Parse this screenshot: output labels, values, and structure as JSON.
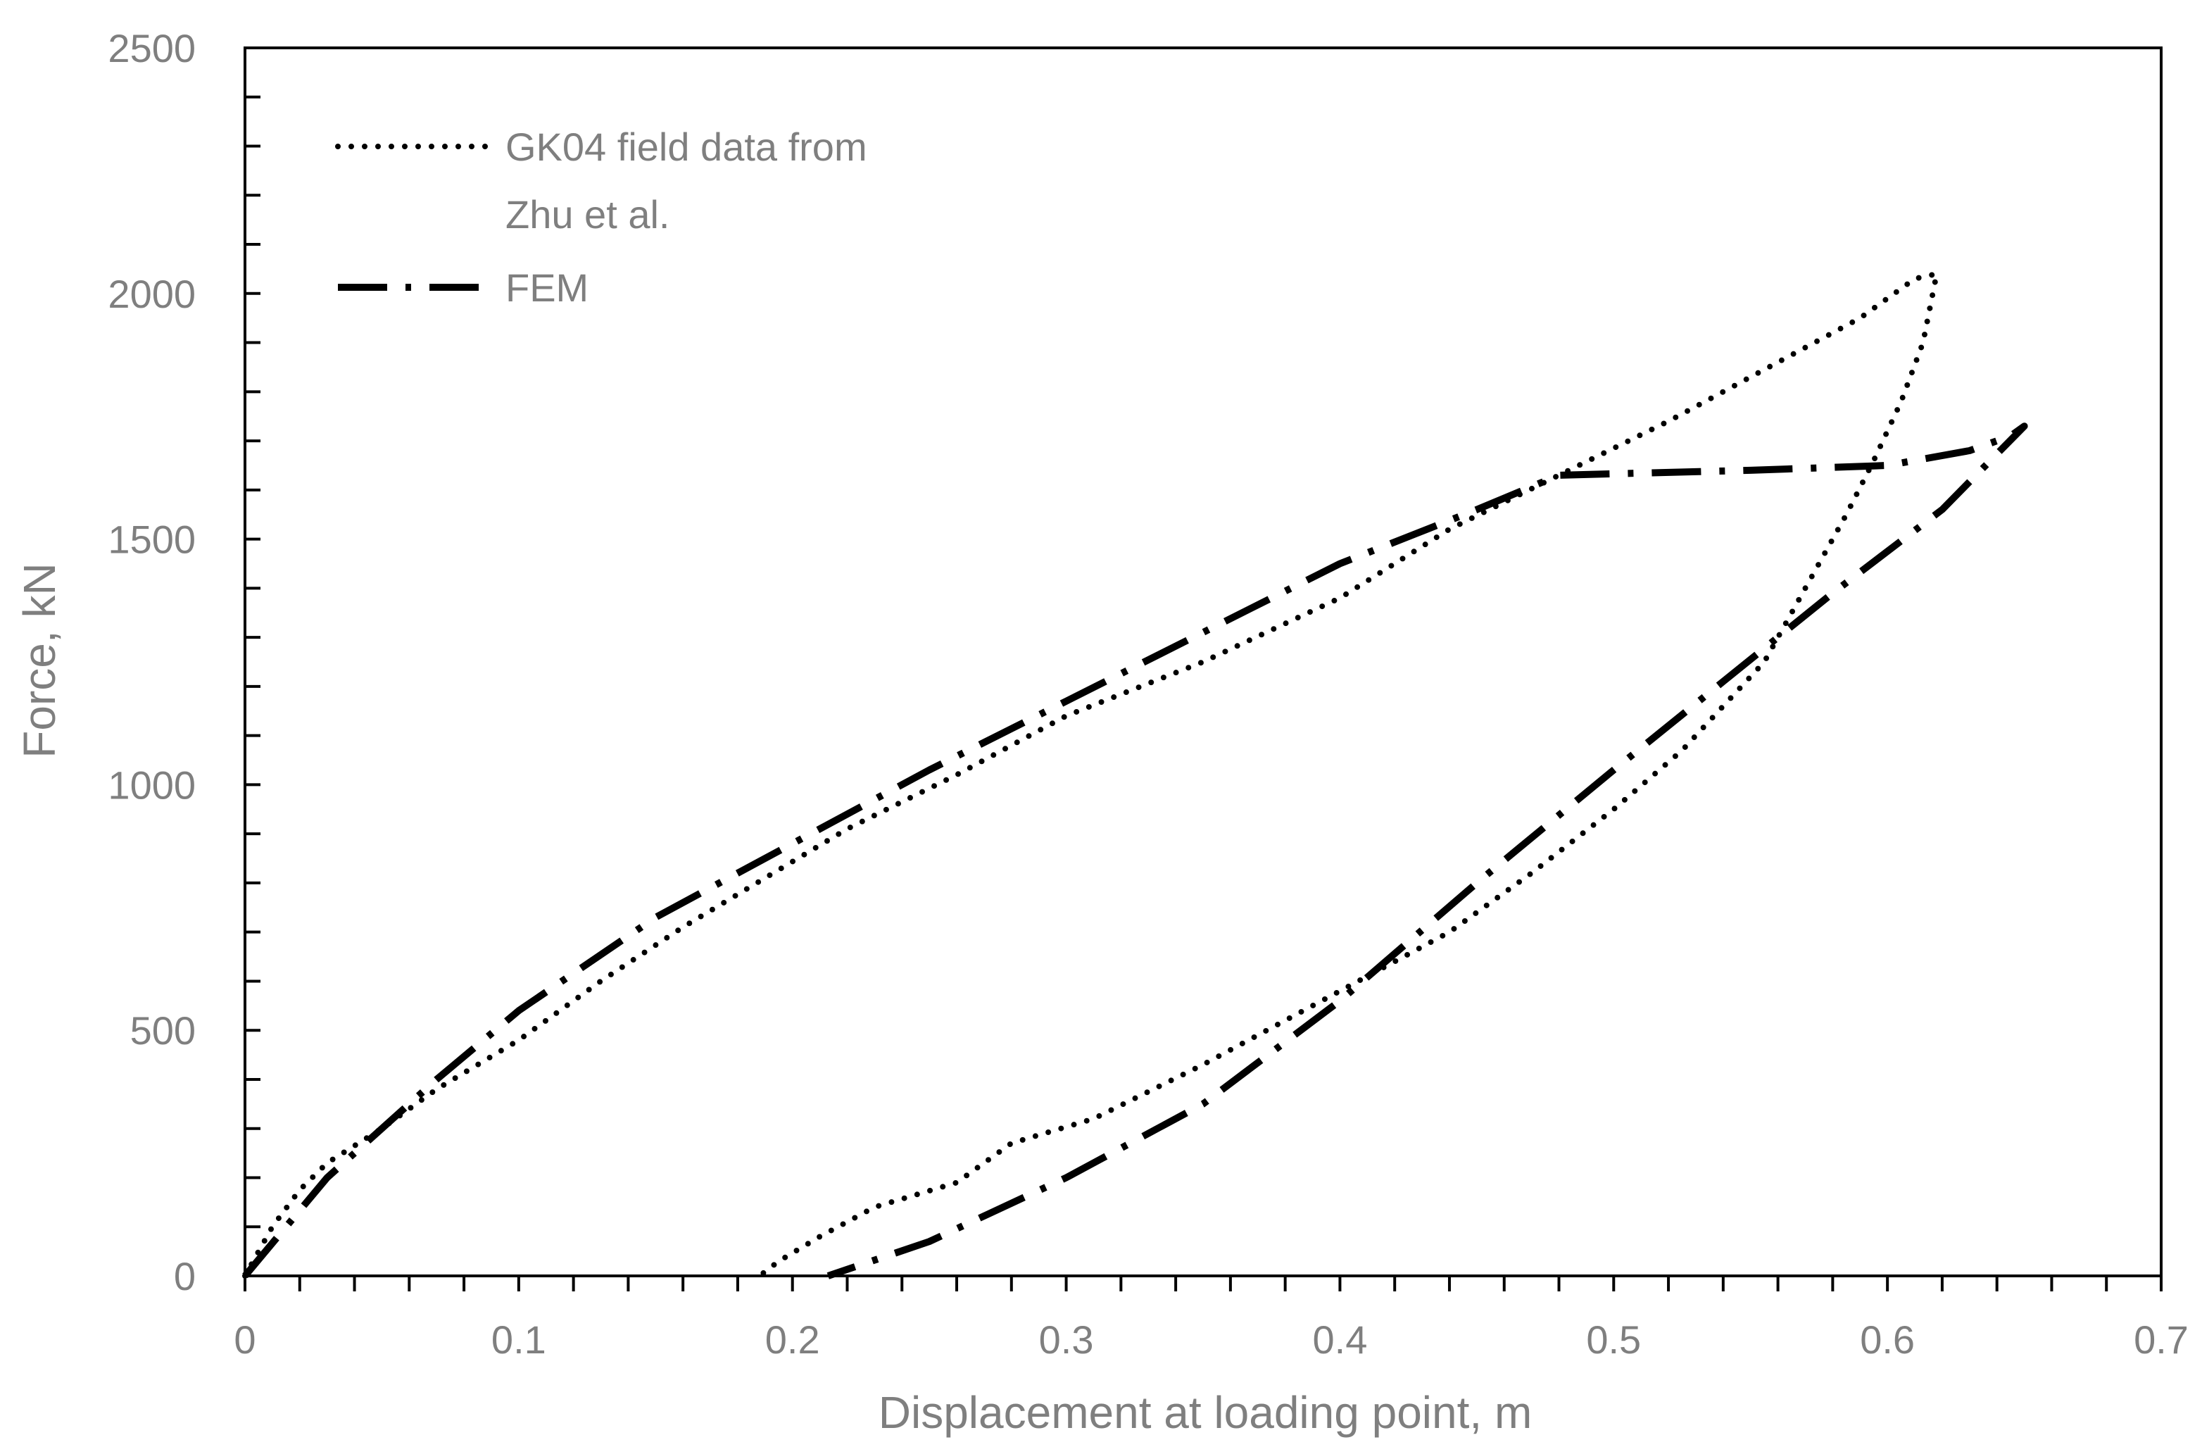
{
  "chart_data": {
    "type": "line",
    "title": "",
    "xlabel": "Displacement at loading point, m",
    "ylabel": "Force, kN",
    "xlim": [
      0,
      0.7
    ],
    "ylim": [
      0,
      2500
    ],
    "x_ticks": [
      0,
      0.1,
      0.2,
      0.3,
      0.4,
      0.5,
      0.6,
      0.7
    ],
    "x_tick_labels": [
      "0",
      "0.1",
      "0.2",
      "0.3",
      "0.4",
      "0.5",
      "0.6",
      "0.7"
    ],
    "y_ticks": [
      0,
      500,
      1000,
      1500,
      2000,
      2500
    ],
    "y_tick_labels": [
      "0",
      "500",
      "1000",
      "1500",
      "2000",
      "2500"
    ],
    "grid": false,
    "legend_position": "top-left",
    "series": [
      {
        "name": "GK04 field data from Zhu et al.",
        "legend_lines": [
          "GK04 field data from",
          "Zhu et al."
        ],
        "style": "dotted",
        "color": "#000000",
        "x": [
          0,
          0.01,
          0.02,
          0.03,
          0.05,
          0.07,
          0.1,
          0.13,
          0.16,
          0.19,
          0.22,
          0.26,
          0.3,
          0.35,
          0.4,
          0.44,
          0.48,
          0.52,
          0.56,
          0.59,
          0.61,
          0.618,
          0.613,
          0.605,
          0.595,
          0.585,
          0.575,
          0.555,
          0.525,
          0.5,
          0.47,
          0.44,
          0.41,
          0.38,
          0.35,
          0.31,
          0.28,
          0.26,
          0.23,
          0.21,
          0.195,
          0.188
        ],
        "y": [
          0,
          100,
          175,
          230,
          300,
          380,
          480,
          600,
          710,
          810,
          910,
          1020,
          1140,
          1250,
          1380,
          1520,
          1630,
          1740,
          1860,
          1950,
          2030,
          2040,
          1900,
          1780,
          1660,
          1550,
          1450,
          1250,
          1070,
          950,
          820,
          700,
          610,
          520,
          430,
          320,
          270,
          190,
          140,
          80,
          30,
          0
        ]
      },
      {
        "name": "FEM",
        "style": "dash-dot",
        "color": "#000000",
        "x": [
          0,
          0.03,
          0.07,
          0.1,
          0.15,
          0.2,
          0.25,
          0.3,
          0.35,
          0.4,
          0.45,
          0.48,
          0.55,
          0.6,
          0.63,
          0.645,
          0.65,
          0.62,
          0.58,
          0.54,
          0.5,
          0.45,
          0.4,
          0.35,
          0.3,
          0.25,
          0.213
        ],
        "y": [
          0,
          200,
          400,
          540,
          730,
          880,
          1030,
          1170,
          1310,
          1450,
          1560,
          1630,
          1640,
          1650,
          1680,
          1710,
          1730,
          1560,
          1390,
          1210,
          1030,
          800,
          560,
          350,
          200,
          70,
          0
        ]
      }
    ]
  }
}
